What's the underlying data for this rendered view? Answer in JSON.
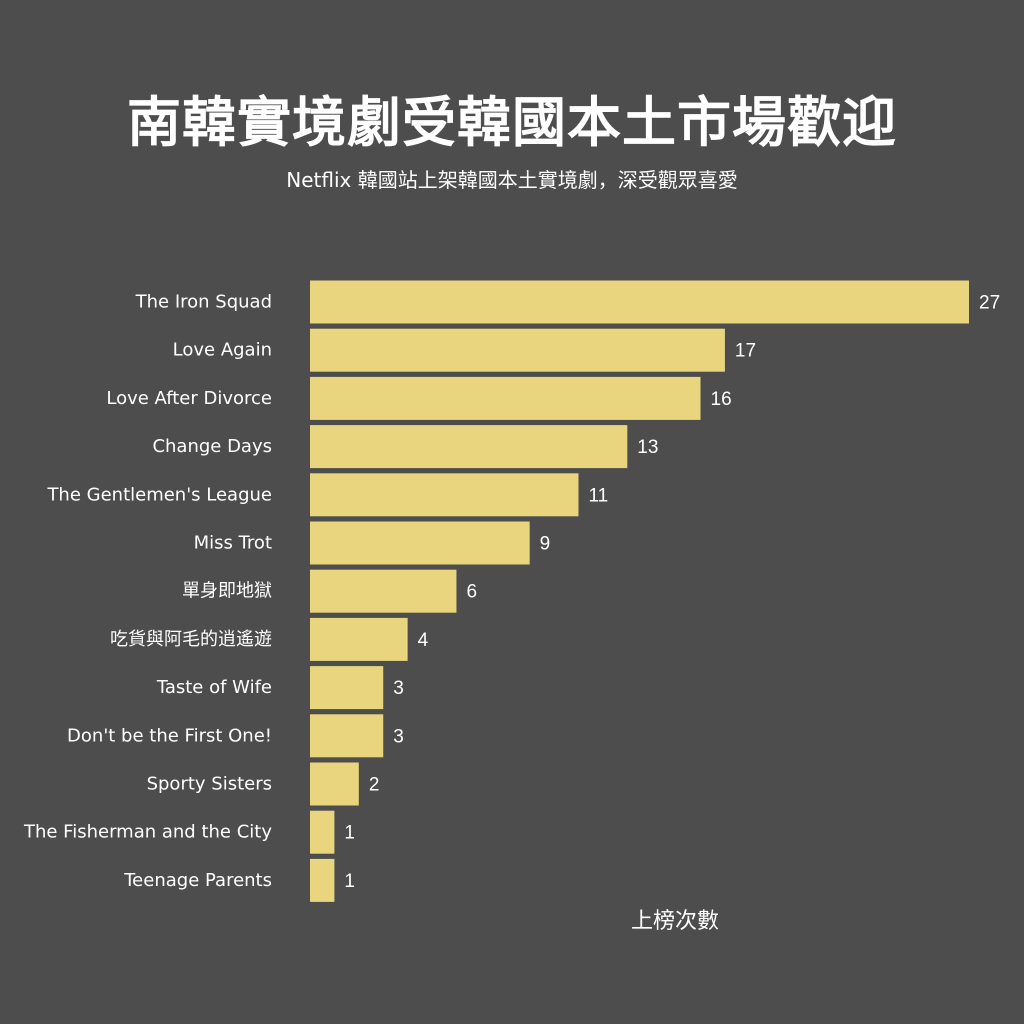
{
  "title": "南韓實境劇受韓國本土市場歡迎",
  "subtitle": "Netflix 韓國站上架韓國本土實境劇，深受觀眾喜愛",
  "colors": {
    "background": "#4d4d4d",
    "bar": "#e8d57e",
    "text": "#ffffff"
  },
  "chart_data": {
    "type": "bar",
    "orientation": "horizontal",
    "title": "南韓實境劇受韓國本土市場歡迎",
    "subtitle": "Netflix 韓國站上架韓國本土實境劇，深受觀眾喜愛",
    "xlabel": "上榜次數",
    "ylabel": "",
    "grid": false,
    "legend": "none",
    "categories": [
      "The Iron Squad",
      "Love Again",
      "Love After Divorce",
      "Change Days",
      "The Gentlemen's League",
      "Miss Trot",
      "單身即地獄",
      "吃貨與阿毛的逍遙遊",
      "Taste of Wife",
      "Don't be the First One!",
      "Sporty Sisters",
      "The Fisherman and the City",
      "Teenage Parents"
    ],
    "values": [
      27,
      17,
      16,
      13,
      11,
      9,
      6,
      4,
      3,
      3,
      2,
      1,
      1
    ],
    "xlim": [
      0,
      27
    ]
  }
}
